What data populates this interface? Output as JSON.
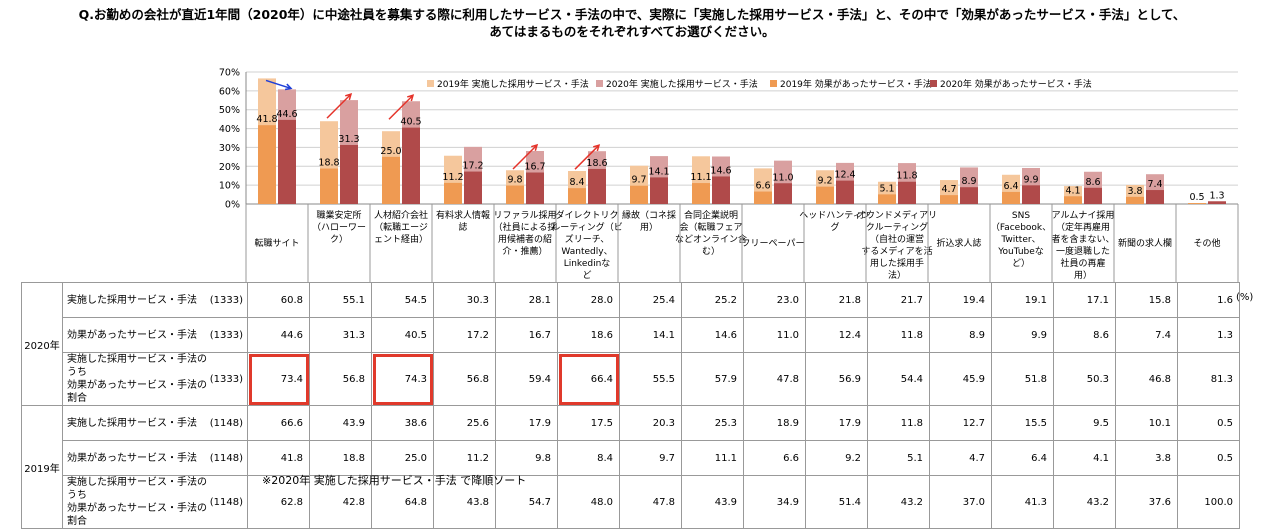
{
  "title_line1": "Q.お勤めの会社が直近1年間（2020年）に中途社員を募集する際に利用したサービス・手法の中で、実際に「実施した採用サービス・手法」と、その中で「効果があったサービス・手法」として、",
  "title_line2": "あてはまるものをそれぞれすべてお選びください。",
  "unit": "(%)",
  "footnote": "※2020年 実施した採用サービス・手法 で降順ソート",
  "colors": {
    "s2019_impl": "#f5c79c",
    "s2020_impl": "#d9a0a0",
    "s2019_eff": "#ef9a52",
    "s2020_eff": "#b04a4a",
    "arrow_red": "#e5332a",
    "arrow_blue": "#1f3fd8",
    "highlight": "#e0392b"
  },
  "chart_data": {
    "type": "bar",
    "ylim": [
      0,
      70
    ],
    "yticks": [
      "0%",
      "10%",
      "20%",
      "30%",
      "40%",
      "50%",
      "60%",
      "70%"
    ],
    "legend_position": "top",
    "categories": [
      "転職サイト",
      "職業安定所（ハローワーク）",
      "人材紹介会社（転職エージェント経由）",
      "有料求人情報誌",
      "リファラル採用（社員による採用候補者の紹介・推薦）",
      "ダイレクトリクルーティング（ビズリーチ、Wantedly、Linkedinなど",
      "縁故（コネ採用）",
      "合同企業説明会（転職フェアなどオンライン含む）",
      "フリーペーパー",
      "ヘッドハンティング",
      "オウンドメディアリクルーティング（自社の運営するメディアを活用した採用手法）",
      "折込求人誌",
      "SNS（Facebook、Twitter、YouTubeなど）",
      "アルムナイ採用（定年再雇用者を含まない、一度退職した社員の再雇用）",
      "新聞の求人欄",
      "その他"
    ],
    "category_lines": [
      [
        "転職サイト"
      ],
      [
        "職業安定所",
        "（ハローワー",
        "ク）"
      ],
      [
        "人材紹介会社",
        "（転職エージ",
        "ェント経由）"
      ],
      [
        "有料求人情報",
        "誌"
      ],
      [
        "リファラル採用",
        "（社員による採",
        "用候補者の紹",
        "介・推薦）"
      ],
      [
        "ダイレクトリク",
        "ルーティング（ビ",
        "ズリーチ、",
        "Wantedly、",
        "Linkedinな",
        "ど"
      ],
      [
        "縁故（コネ採",
        "用）"
      ],
      [
        "合同企業説明",
        "会（転職フェア",
        "などオンライン含",
        "む）"
      ],
      [
        "フリーペーパー"
      ],
      [
        "ヘッドハンティン",
        "グ"
      ],
      [
        "オウンドメディアリ",
        "クルーティング",
        "（自社の運営",
        "するメディアを活",
        "用した採用手",
        "法）"
      ],
      [
        "折込求人誌"
      ],
      [
        "SNS",
        "（Facebook、",
        "Twitter、",
        "YouTubeな",
        "ど）"
      ],
      [
        "アルムナイ採用",
        "（定年再雇用",
        "者を含まない、",
        "一度退職した",
        "社員の再雇",
        "用）"
      ],
      [
        "新聞の求人欄"
      ],
      [
        "その他"
      ]
    ],
    "series": [
      {
        "name": "2019年 実施した採用サービス・手法",
        "values": [
          66.6,
          43.9,
          38.6,
          25.6,
          17.9,
          17.5,
          20.3,
          25.3,
          18.9,
          17.9,
          11.8,
          12.7,
          15.5,
          9.5,
          10.1,
          0.5
        ]
      },
      {
        "name": "2020年 実施した採用サービス・手法",
        "values": [
          60.8,
          55.1,
          54.5,
          30.3,
          28.1,
          28.0,
          25.4,
          25.2,
          23.0,
          21.8,
          21.7,
          19.4,
          19.1,
          17.1,
          15.8,
          1.6
        ]
      },
      {
        "name": "2019年 効果があったサービス・手法",
        "values": [
          41.8,
          18.8,
          25.0,
          11.2,
          9.8,
          8.4,
          9.7,
          11.1,
          6.6,
          9.2,
          5.1,
          4.7,
          6.4,
          4.1,
          3.8,
          0.5
        ]
      },
      {
        "name": "2020年 効果があったサービス・手法",
        "values": [
          44.6,
          31.3,
          40.5,
          17.2,
          16.7,
          18.6,
          14.1,
          14.6,
          11.0,
          12.4,
          11.8,
          8.9,
          9.9,
          8.6,
          7.4,
          1.3
        ]
      }
    ],
    "arrows": [
      {
        "category_index": 0,
        "direction": "down",
        "color": "blue"
      },
      {
        "category_index": 1,
        "direction": "up",
        "color": "red"
      },
      {
        "category_index": 2,
        "direction": "up",
        "color": "red"
      },
      {
        "category_index": 4,
        "direction": "up",
        "color": "red"
      },
      {
        "category_index": 5,
        "direction": "up",
        "color": "red"
      }
    ]
  },
  "table": {
    "groups": [
      {
        "year": "2020年",
        "rows": [
          {
            "label": [
              "実施した採用サービス・手法"
            ],
            "n": "(1333)",
            "values": [
              "60.8",
              "55.1",
              "54.5",
              "30.3",
              "28.1",
              "28.0",
              "25.4",
              "25.2",
              "23.0",
              "21.8",
              "21.7",
              "19.4",
              "19.1",
              "17.1",
              "15.8",
              "1.6"
            ],
            "highlight": []
          },
          {
            "label": [
              "効果があったサービス・手法"
            ],
            "n": "(1333)",
            "values": [
              "44.6",
              "31.3",
              "40.5",
              "17.2",
              "16.7",
              "18.6",
              "14.1",
              "14.6",
              "11.0",
              "12.4",
              "11.8",
              "8.9",
              "9.9",
              "8.6",
              "7.4",
              "1.3"
            ],
            "highlight": []
          },
          {
            "label": [
              "実施した採用サービス・手法のうち",
              "効果があったサービス・手法の割合"
            ],
            "n": "(1333)",
            "values": [
              "73.4",
              "56.8",
              "74.3",
              "56.8",
              "59.4",
              "66.4",
              "55.5",
              "57.9",
              "47.8",
              "56.9",
              "54.4",
              "45.9",
              "51.8",
              "50.3",
              "46.8",
              "81.3"
            ],
            "highlight": [
              0,
              2,
              5
            ]
          }
        ]
      },
      {
        "year": "2019年",
        "rows": [
          {
            "label": [
              "実施した採用サービス・手法"
            ],
            "n": "(1148)",
            "values": [
              "66.6",
              "43.9",
              "38.6",
              "25.6",
              "17.9",
              "17.5",
              "20.3",
              "25.3",
              "18.9",
              "17.9",
              "11.8",
              "12.7",
              "15.5",
              "9.5",
              "10.1",
              "0.5"
            ],
            "highlight": []
          },
          {
            "label": [
              "効果があったサービス・手法"
            ],
            "n": "(1148)",
            "values": [
              "41.8",
              "18.8",
              "25.0",
              "11.2",
              "9.8",
              "8.4",
              "9.7",
              "11.1",
              "6.6",
              "9.2",
              "5.1",
              "4.7",
              "6.4",
              "4.1",
              "3.8",
              "0.5"
            ],
            "highlight": []
          },
          {
            "label": [
              "実施した採用サービス・手法のうち",
              "効果があったサービス・手法の割合"
            ],
            "n": "(1148)",
            "values": [
              "62.8",
              "42.8",
              "64.8",
              "43.8",
              "54.7",
              "48.0",
              "47.8",
              "43.9",
              "34.9",
              "51.4",
              "43.2",
              "37.0",
              "41.3",
              "43.2",
              "37.6",
              "100.0"
            ],
            "highlight": []
          }
        ]
      }
    ]
  }
}
